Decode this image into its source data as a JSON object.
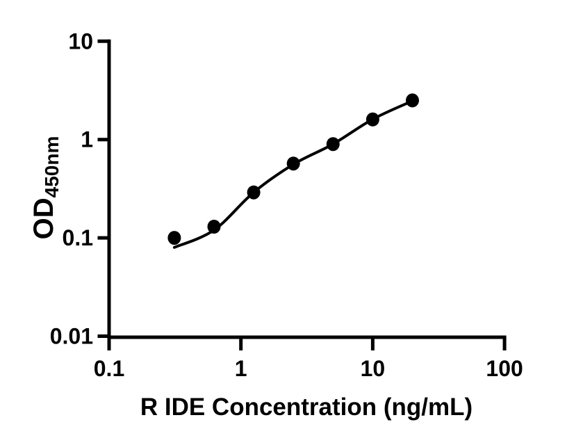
{
  "figure": {
    "background": "#ffffff",
    "ink_color": "#000000"
  },
  "chart_data": {
    "type": "scatter",
    "title": "",
    "xlabel": "R IDE Concentration (ng/mL)",
    "ylabel": {
      "main": "OD",
      "subscript": "450nm"
    },
    "x_scale": "log",
    "y_scale": "log",
    "xlim": [
      0.1,
      100
    ],
    "ylim": [
      0.01,
      10
    ],
    "x_ticks": [
      "0.1",
      "1",
      "10",
      "100"
    ],
    "y_ticks": [
      "10",
      "1",
      "0.1",
      "0.01"
    ],
    "grid": false,
    "legend": "none",
    "series": [
      {
        "name": "standard-points",
        "kind": "scatter",
        "marker": "filled-circle",
        "color": "#000000",
        "x": [
          0.3125,
          0.625,
          1.25,
          2.5,
          5,
          10,
          20
        ],
        "y": [
          0.1,
          0.13,
          0.29,
          0.57,
          0.9,
          1.6,
          2.5
        ]
      },
      {
        "name": "fit-curve",
        "kind": "line",
        "color": "#000000",
        "x": [
          0.3125,
          0.625,
          1.25,
          2.5,
          5,
          10,
          20
        ],
        "y": [
          0.08,
          0.12,
          0.29,
          0.56,
          0.9,
          1.61,
          2.47
        ]
      }
    ]
  }
}
